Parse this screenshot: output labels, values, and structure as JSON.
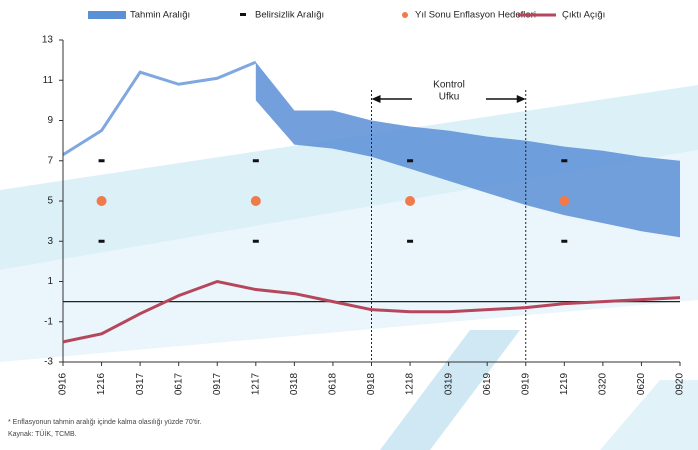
{
  "chart_data": {
    "type": "fan",
    "categories": [
      "0916",
      "1216",
      "0317",
      "0617",
      "0917",
      "1217",
      "0318",
      "0618",
      "0918",
      "1218",
      "0319",
      "0619",
      "0919",
      "1219",
      "0320",
      "0620",
      "0920"
    ],
    "ylim": [
      -3,
      13
    ],
    "yticks": [
      13,
      11,
      9,
      7,
      5,
      3,
      1,
      -1,
      -3
    ],
    "inflation": {
      "color": "#7fa8e0",
      "values": [
        7.3,
        8.5,
        11.4,
        10.8,
        11.1,
        11.9,
        null,
        null,
        null,
        null,
        null,
        null,
        null,
        null,
        null,
        null,
        null
      ]
    },
    "series": [
      {
        "name": "Tahmin Aralığı",
        "color": "#5b8fd6",
        "lower": [
          null,
          null,
          null,
          null,
          null,
          10.0,
          7.8,
          7.6,
          7.2,
          6.6,
          6.0,
          5.4,
          4.8,
          4.3,
          3.9,
          3.5,
          3.2
        ],
        "upper": [
          null,
          null,
          null,
          null,
          null,
          11.9,
          9.5,
          9.5,
          9.0,
          8.7,
          8.5,
          8.2,
          8.0,
          7.7,
          7.5,
          7.2,
          7.0
        ]
      },
      {
        "name": "Belirsizlik Aralığı",
        "color": "#111111",
        "lower": [
          null,
          3,
          null,
          null,
          null,
          3,
          null,
          null,
          null,
          3,
          null,
          null,
          null,
          3,
          null,
          null,
          null
        ],
        "upper": [
          null,
          7,
          null,
          null,
          null,
          7,
          null,
          null,
          null,
          7,
          null,
          null,
          null,
          7,
          null,
          null,
          null
        ]
      },
      {
        "name": "Yıl Sonu Enflasyon Hedefleri",
        "color": "#f07a4a",
        "values": [
          null,
          5,
          null,
          null,
          null,
          5,
          null,
          null,
          null,
          5,
          null,
          null,
          null,
          5,
          null,
          null,
          null
        ]
      },
      {
        "name": "Çıktı Açığı",
        "color": "#b5465c",
        "values": [
          -2.0,
          -1.6,
          -0.6,
          0.3,
          1.0,
          0.6,
          0.4,
          0.0,
          -0.4,
          -0.5,
          -0.5,
          -0.4,
          -0.3,
          -0.1,
          0.0,
          0.1,
          0.2
        ]
      }
    ],
    "annotation": [
      "Kontrol",
      "Ufku"
    ],
    "footnotes": [
      "* Enflasyonun tahmin aralığı içinde kalma olasılığı yüzde 70'tir.",
      "Kaynak: TÜİK, TCMB."
    ]
  }
}
